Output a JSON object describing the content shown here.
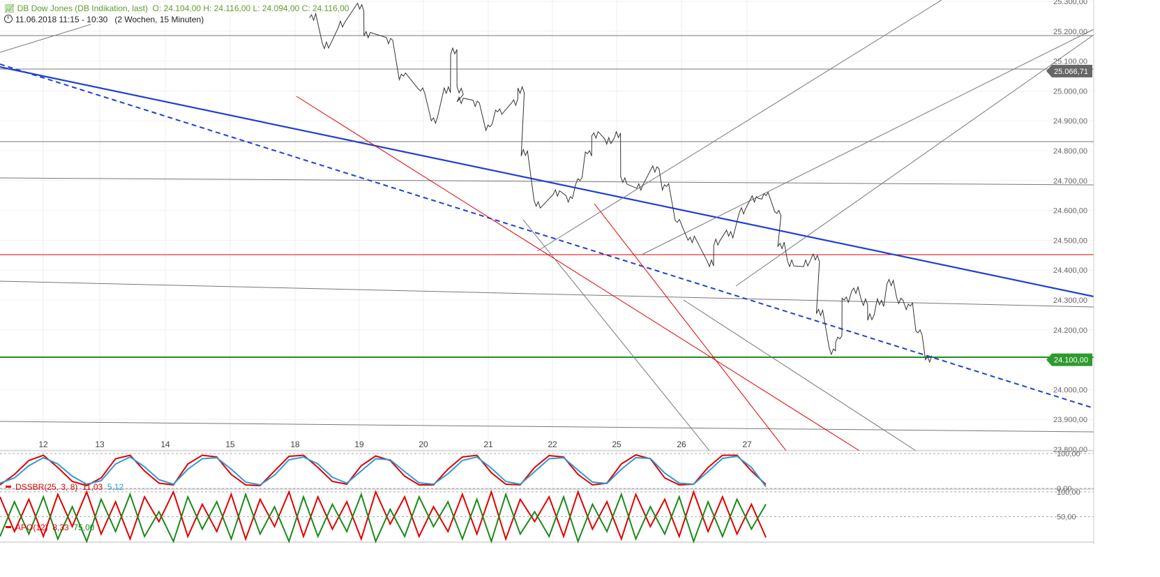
{
  "header": {
    "instrument": "DB Dow Jones (DB Indikation, last)",
    "ohlc": "O: 24.104,00  H: 24.116,00  L: 24.094,00  C: 24.116,00",
    "period": "11.06.2018 11:15 - 10:30",
    "interval": "(2 Wochen, 15 Minuten)"
  },
  "price_markers": [
    {
      "value": 25066.71,
      "label": "25.066,71",
      "color": "#666666"
    },
    {
      "value": 24100.0,
      "label": "24.100,00",
      "color": "#2e9b2e"
    }
  ],
  "chart_data": [
    {
      "type": "line",
      "name": "price",
      "ylim": [
        23800,
        25300
      ],
      "y_ticks": [
        {
          "v": 25300,
          "label": "25.300,00"
        },
        {
          "v": 25200,
          "label": "25.200,00"
        },
        {
          "v": 25100,
          "label": "25.100,00"
        },
        {
          "v": 25000,
          "label": "25.000,00"
        },
        {
          "v": 24900,
          "label": "24.900,00"
        },
        {
          "v": 24800,
          "label": "24.800,00"
        },
        {
          "v": 24700,
          "label": "24.700,00"
        },
        {
          "v": 24600,
          "label": "24.600,00"
        },
        {
          "v": 24500,
          "label": "24.500,00"
        },
        {
          "v": 24400,
          "label": "24.400,00"
        },
        {
          "v": 24300,
          "label": "24.300,00"
        },
        {
          "v": 24200,
          "label": "24.200,00"
        },
        {
          "v": 24100,
          "label": "24.100,00"
        },
        {
          "v": 24000,
          "label": "24.000,00"
        },
        {
          "v": 23900,
          "label": "23.900,00"
        },
        {
          "v": 23800,
          "label": "23.800,00"
        }
      ],
      "x_labels": [
        "12",
        "13",
        "14",
        "15",
        "18",
        "19",
        "20",
        "21",
        "22",
        "25",
        "26",
        "27"
      ],
      "session_x": [
        0,
        0.3,
        1.05,
        2.1,
        3.1,
        4.1,
        5.1,
        6.1,
        7.1,
        8.1,
        9.1,
        10.1,
        11.1,
        11.45
      ],
      "series": [
        {
          "points": [
            [
              2.3,
              25245
            ],
            [
              2.5,
              25150
            ],
            [
              2.75,
              25220
            ],
            [
              3.05,
              25280
            ],
            [
              3.15,
              25190
            ],
            [
              3.5,
              25170
            ],
            [
              3.7,
              25050
            ],
            [
              4.0,
              25000
            ],
            [
              4.2,
              24900
            ],
            [
              4.4,
              25000
            ],
            [
              4.5,
              25130
            ],
            [
              4.6,
              25000
            ],
            [
              4.6,
              24970
            ],
            [
              4.85,
              24960
            ],
            [
              5.05,
              24880
            ],
            [
              5.2,
              24930
            ],
            [
              5.45,
              24960
            ],
            [
              5.55,
              25000
            ],
            [
              5.6,
              24790
            ],
            [
              5.8,
              24620
            ],
            [
              6.1,
              24660
            ],
            [
              6.3,
              24640
            ],
            [
              6.45,
              24700
            ],
            [
              6.6,
              24790
            ],
            [
              6.7,
              24850
            ],
            [
              6.9,
              24830
            ],
            [
              7.05,
              24850
            ],
            [
              7.15,
              24700
            ],
            [
              7.4,
              24680
            ],
            [
              7.65,
              24740
            ],
            [
              7.8,
              24680
            ],
            [
              8.0,
              24560
            ],
            [
              8.2,
              24500
            ],
            [
              8.5,
              24420
            ],
            [
              8.6,
              24490
            ],
            [
              8.8,
              24520
            ],
            [
              9.0,
              24600
            ],
            [
              9.2,
              24640
            ],
            [
              9.35,
              24650
            ],
            [
              9.55,
              24590
            ],
            [
              9.6,
              24480
            ],
            [
              9.75,
              24420
            ],
            [
              10.0,
              24420
            ],
            [
              10.15,
              24440
            ],
            [
              10.2,
              24260
            ],
            [
              10.4,
              24130
            ],
            [
              10.5,
              24170
            ],
            [
              10.6,
              24300
            ],
            [
              10.75,
              24330
            ],
            [
              10.9,
              24290
            ],
            [
              11.0,
              24240
            ],
            [
              11.15,
              24290
            ],
            [
              11.3,
              24360
            ],
            [
              11.45,
              24300
            ],
            [
              11.6,
              24280
            ],
            [
              11.75,
              24190
            ],
            [
              11.9,
              24100
            ]
          ]
        }
      ]
    },
    {
      "type": "line",
      "name": "DSSBR",
      "title": "DSSBR(25, 3, 8)",
      "values_label": [
        "11,03",
        "5,12"
      ],
      "ylim": [
        0,
        100
      ],
      "y_ticks": [
        {
          "v": 100,
          "label": "100,00"
        },
        {
          "v": 0,
          "label": "0,00"
        }
      ],
      "series": [
        {
          "color": "#e00000",
          "values": [
            10,
            40,
            80,
            95,
            60,
            20,
            8,
            30,
            85,
            95,
            50,
            15,
            10,
            70,
            95,
            90,
            40,
            10,
            8,
            50,
            92,
            95,
            60,
            20,
            12,
            65,
            93,
            80,
            35,
            10,
            10,
            55,
            90,
            95,
            45,
            12,
            10,
            60,
            94,
            90,
            40,
            10,
            15,
            70,
            96,
            85,
            30,
            10,
            12,
            60,
            95,
            95,
            50,
            11
          ]
        },
        {
          "color": "#2e9bd6",
          "values": [
            15,
            30,
            65,
            88,
            70,
            35,
            12,
            22,
            70,
            90,
            62,
            25,
            12,
            55,
            85,
            88,
            55,
            18,
            10,
            38,
            82,
            90,
            70,
            32,
            15,
            50,
            85,
            82,
            48,
            16,
            12,
            42,
            80,
            90,
            58,
            20,
            12,
            48,
            85,
            88,
            52,
            18,
            14,
            55,
            88,
            86,
            44,
            15,
            12,
            48,
            86,
            92,
            60,
            5
          ]
        }
      ]
    },
    {
      "type": "line",
      "name": "APO",
      "title": "APO(12)",
      "values_label": [
        "8,33",
        "75,00"
      ],
      "ylim": [
        0,
        100
      ],
      "y_ticks": [
        {
          "v": 100,
          "label": "100,00"
        },
        {
          "v": 50,
          "label": "50,00"
        }
      ],
      "series": [
        {
          "color": "#e00000",
          "values": [
            90,
            20,
            85,
            10,
            95,
            30,
            100,
            15,
            80,
            5,
            90,
            40,
            100,
            10,
            75,
            20,
            95,
            5,
            85,
            30,
            100,
            10,
            90,
            25,
            80,
            5,
            100,
            35,
            90,
            10,
            70,
            20,
            95,
            15,
            100,
            5,
            85,
            40,
            90,
            10,
            100,
            25,
            80,
            5,
            95,
            30,
            85,
            10,
            100,
            20,
            90,
            15,
            75,
            8
          ]
        },
        {
          "color": "#1a8a1a",
          "values": [
            10,
            80,
            15,
            90,
            5,
            70,
            0,
            85,
            20,
            95,
            10,
            60,
            0,
            90,
            25,
            80,
            5,
            95,
            15,
            70,
            0,
            90,
            10,
            75,
            20,
            95,
            0,
            65,
            10,
            90,
            30,
            80,
            5,
            85,
            0,
            95,
            15,
            60,
            10,
            90,
            0,
            75,
            20,
            95,
            5,
            70,
            15,
            90,
            0,
            80,
            10,
            85,
            25,
            75
          ]
        }
      ]
    }
  ],
  "colors": {
    "trend_blue": "#1f3fd6",
    "trend_red": "#e00000",
    "support_green": "#1e8c1e",
    "gray_line": "#777777",
    "price": "#333333"
  }
}
